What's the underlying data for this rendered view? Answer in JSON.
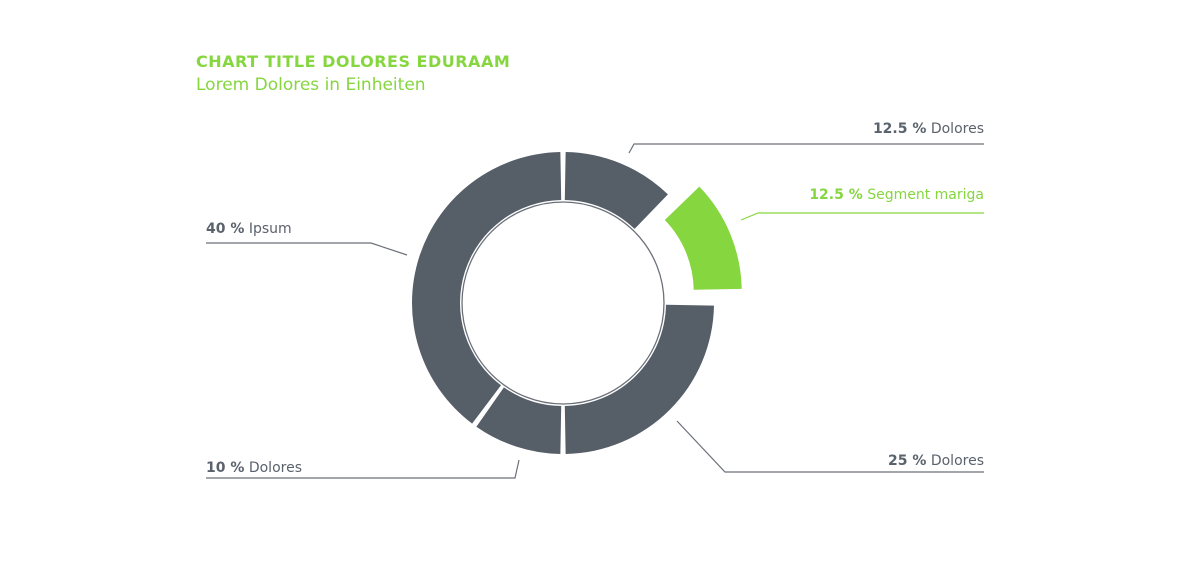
{
  "chart_data": {
    "type": "pie",
    "variant": "donut",
    "title": "CHART TITLE DOLORES EDURAAM",
    "subtitle": "Lorem Dolores in Einheiten",
    "colors": {
      "default": "#565e68",
      "highlight": "#86d640",
      "text": "#5a626c",
      "line": "#6b7078"
    },
    "slices": [
      {
        "label": "Dolores",
        "pct_text": "12.5 %",
        "value": 12.5,
        "highlight": false
      },
      {
        "label": "Segment mariga",
        "pct_text": "12.5 %",
        "value": 12.5,
        "highlight": true
      },
      {
        "label": "Dolores",
        "pct_text": "25 %",
        "value": 25,
        "highlight": false
      },
      {
        "label": "Dolores",
        "pct_text": "10 %",
        "value": 10,
        "highlight": false
      },
      {
        "label": "Ipsum",
        "pct_text": "40 %",
        "value": 40,
        "highlight": false
      }
    ]
  }
}
